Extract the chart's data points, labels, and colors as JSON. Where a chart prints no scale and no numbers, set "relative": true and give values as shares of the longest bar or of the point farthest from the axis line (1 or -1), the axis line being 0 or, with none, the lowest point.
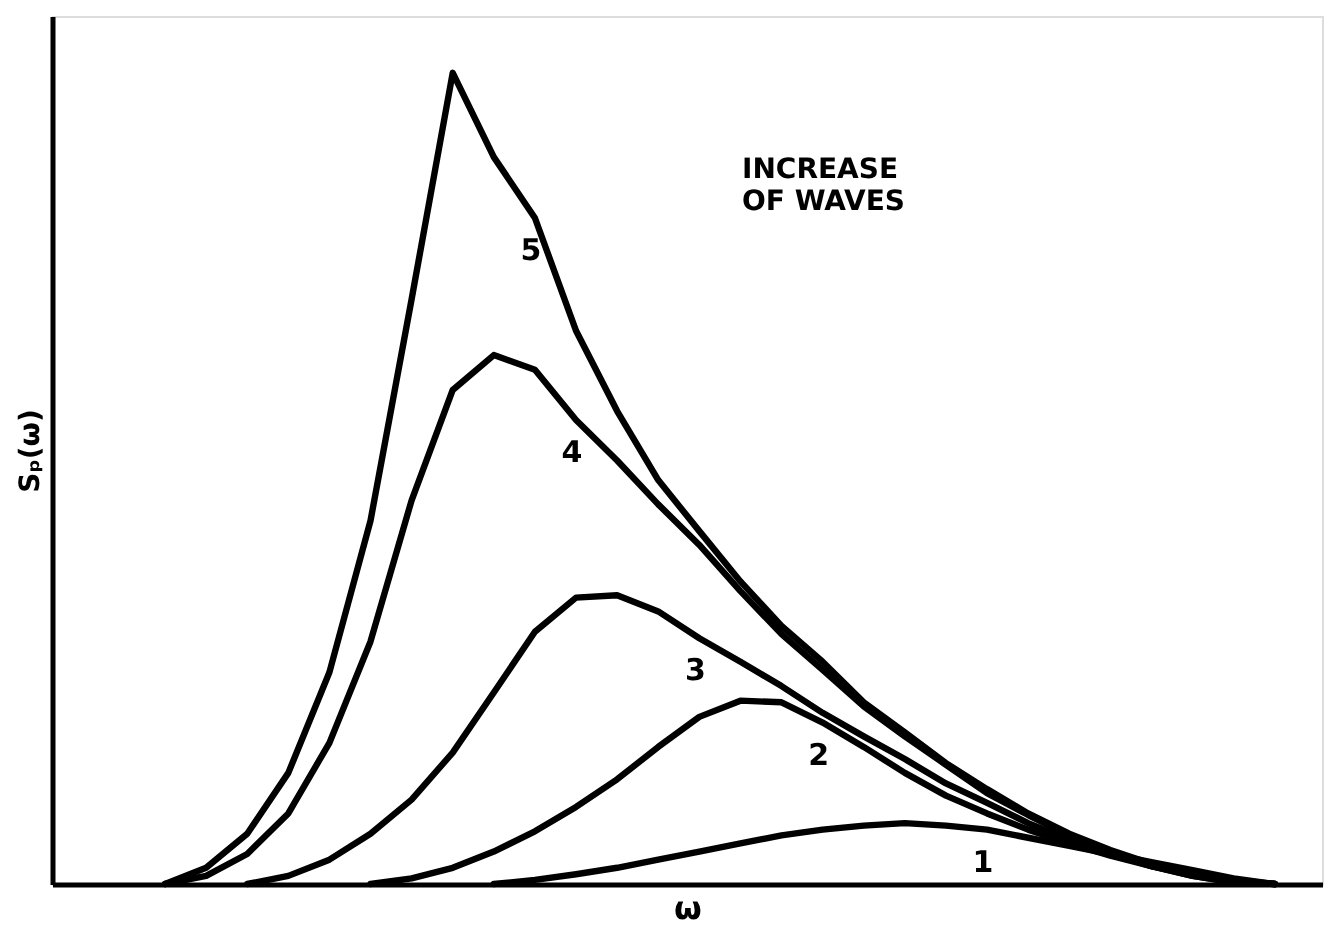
{
  "chart_data": {
    "type": "line",
    "relative": true,
    "xlabel": "ω",
    "ylabel": "Sₚ(ω)",
    "annotations": [
      "INCREASE\nOF WAVES"
    ],
    "grid": false,
    "marker": "none",
    "categories": [
      null,
      null,
      null,
      null,
      null,
      null,
      null,
      null,
      null,
      null,
      null,
      null,
      null,
      null,
      null,
      null,
      null,
      null,
      null,
      null,
      null,
      null,
      null,
      null,
      null,
      null,
      null,
      null,
      null
    ],
    "series": [
      {
        "name": "1",
        "color": "#000000",
        "values": [
          null,
          null,
          null,
          null,
          null,
          null,
          null,
          null,
          null,
          0,
          0.005,
          0.012,
          0.02,
          0.03,
          0.04,
          0.05,
          0.06,
          0.067,
          0.072,
          0.075,
          0.072,
          0.067,
          0.057,
          0.047,
          0.037,
          0.027,
          0.017,
          0.007,
          0
        ]
      },
      {
        "name": "2",
        "color": "#000000",
        "values": [
          null,
          null,
          null,
          null,
          null,
          null,
          0,
          0.007,
          0.02,
          0.04,
          0.065,
          0.095,
          0.129,
          0.169,
          0.206,
          0.226,
          0.224,
          0.199,
          0.169,
          0.137,
          0.109,
          0.087,
          0.067,
          0.05,
          0.035,
          0.022,
          0.012,
          0.005,
          0
        ]
      },
      {
        "name": "3",
        "color": "#000000",
        "values": [
          null,
          null,
          null,
          0,
          0.01,
          0.03,
          0.062,
          0.104,
          0.162,
          0.236,
          0.311,
          0.353,
          0.356,
          0.336,
          0.303,
          0.274,
          0.244,
          0.211,
          0.182,
          0.154,
          0.124,
          0.1,
          0.075,
          0.055,
          0.037,
          0.022,
          0.01,
          0.002,
          0
        ]
      },
      {
        "name": "4",
        "color": "#000000",
        "values": [
          null,
          0,
          0.01,
          0.037,
          0.087,
          0.174,
          0.299,
          0.473,
          0.609,
          0.652,
          0.634,
          0.572,
          0.522,
          0.468,
          0.418,
          0.361,
          0.308,
          0.264,
          0.219,
          0.182,
          0.147,
          0.112,
          0.085,
          0.06,
          0.04,
          0.022,
          0.01,
          0.002,
          0
        ]
      },
      {
        "name": "5",
        "color": "#000000",
        "values": [
          null,
          0,
          0.02,
          0.062,
          0.137,
          0.261,
          0.448,
          0.721,
          1,
          0.896,
          0.821,
          0.682,
          0.583,
          0.498,
          0.435,
          0.373,
          0.318,
          0.274,
          0.224,
          0.187,
          0.149,
          0.117,
          0.087,
          0.062,
          0.042,
          0.025,
          0.012,
          0.002,
          0
        ]
      }
    ]
  }
}
